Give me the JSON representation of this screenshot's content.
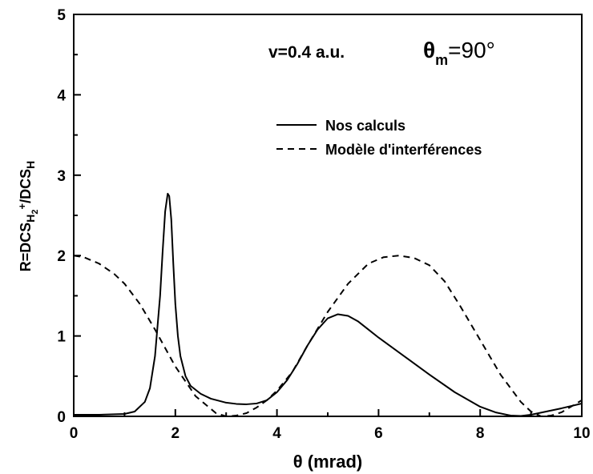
{
  "chart_data": {
    "type": "line",
    "title": "",
    "annotation_velocity": "v=0.4 a.u.",
    "annotation_angle_symbol": "θ",
    "annotation_angle_sub": "m",
    "annotation_angle_value": "=90°",
    "xlabel_symbol": "θ",
    "xlabel_text": "(mrad)",
    "ylabel": {
      "r_prefix": "R=DCS",
      "sub_h": "H",
      "sub_2": "2",
      "sup_plus": "+",
      "mid": "/DCS",
      "sub_h_end": "H"
    },
    "xlim": [
      0,
      10
    ],
    "ylim": [
      0,
      5
    ],
    "x_ticks": [
      0,
      2,
      4,
      6,
      8,
      10
    ],
    "y_ticks": [
      0,
      1,
      2,
      3,
      4,
      5
    ],
    "grid": false,
    "legend_position": "top-right",
    "series": [
      {
        "name": "Nos calculs",
        "style": "solid",
        "color": "#000000",
        "x": [
          0,
          0.5,
          1.0,
          1.2,
          1.4,
          1.5,
          1.6,
          1.7,
          1.75,
          1.8,
          1.85,
          1.88,
          1.92,
          1.96,
          2.0,
          2.05,
          2.1,
          2.2,
          2.3,
          2.5,
          2.7,
          3.0,
          3.2,
          3.4,
          3.6,
          3.8,
          4.0,
          4.2,
          4.4,
          4.6,
          4.8,
          5.0,
          5.2,
          5.4,
          5.6,
          5.8,
          6.0,
          6.5,
          7.0,
          7.5,
          8.0,
          8.3,
          8.6,
          8.8,
          9.0,
          9.3,
          9.6,
          10.0
        ],
        "y": [
          0.02,
          0.02,
          0.03,
          0.06,
          0.18,
          0.35,
          0.75,
          1.5,
          2.05,
          2.55,
          2.77,
          2.74,
          2.45,
          1.9,
          1.4,
          1.0,
          0.75,
          0.5,
          0.38,
          0.28,
          0.22,
          0.17,
          0.155,
          0.15,
          0.16,
          0.2,
          0.3,
          0.45,
          0.65,
          0.88,
          1.08,
          1.22,
          1.27,
          1.25,
          1.18,
          1.08,
          0.98,
          0.75,
          0.52,
          0.3,
          0.12,
          0.05,
          0.01,
          0.005,
          0.02,
          0.06,
          0.1,
          0.16
        ]
      },
      {
        "name": "Modèle d'interférences",
        "style": "dashed",
        "color": "#000000",
        "x": [
          0,
          0.2,
          0.5,
          0.8,
          1.0,
          1.3,
          1.6,
          2.0,
          2.4,
          2.8,
          3.0,
          3.2,
          3.4,
          3.6,
          3.8,
          4.0,
          4.3,
          4.6,
          5.0,
          5.4,
          5.8,
          6.1,
          6.4,
          6.7,
          7.0,
          7.3,
          7.6,
          8.0,
          8.4,
          8.8,
          9.0,
          9.2,
          9.4,
          9.6,
          10.0
        ],
        "y": [
          2.0,
          1.98,
          1.9,
          1.77,
          1.65,
          1.4,
          1.08,
          0.62,
          0.25,
          0.04,
          0.0,
          0.01,
          0.04,
          0.11,
          0.2,
          0.32,
          0.55,
          0.88,
          1.3,
          1.65,
          1.9,
          1.98,
          2.0,
          1.97,
          1.88,
          1.68,
          1.38,
          0.95,
          0.52,
          0.18,
          0.06,
          0.0,
          0.01,
          0.05,
          0.2
        ]
      }
    ]
  }
}
